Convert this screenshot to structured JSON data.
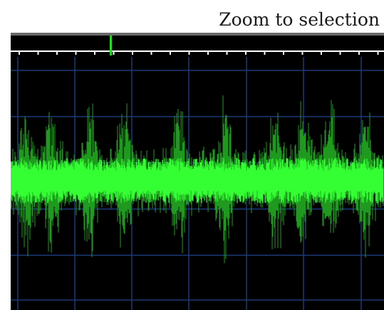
{
  "toolbar": {
    "zoom_label": "Zoom to selection"
  },
  "timeline": {
    "ruler_color": "#ffffff",
    "playhead_color": "#22dd22",
    "background": "#000000"
  },
  "waveform": {
    "background": "#000000",
    "grid_color": "#1c3a78",
    "peak_color": "#1f9a1f",
    "rms_color": "#33ff33"
  },
  "icons": {
    "playhead": "playhead-marker-icon"
  }
}
